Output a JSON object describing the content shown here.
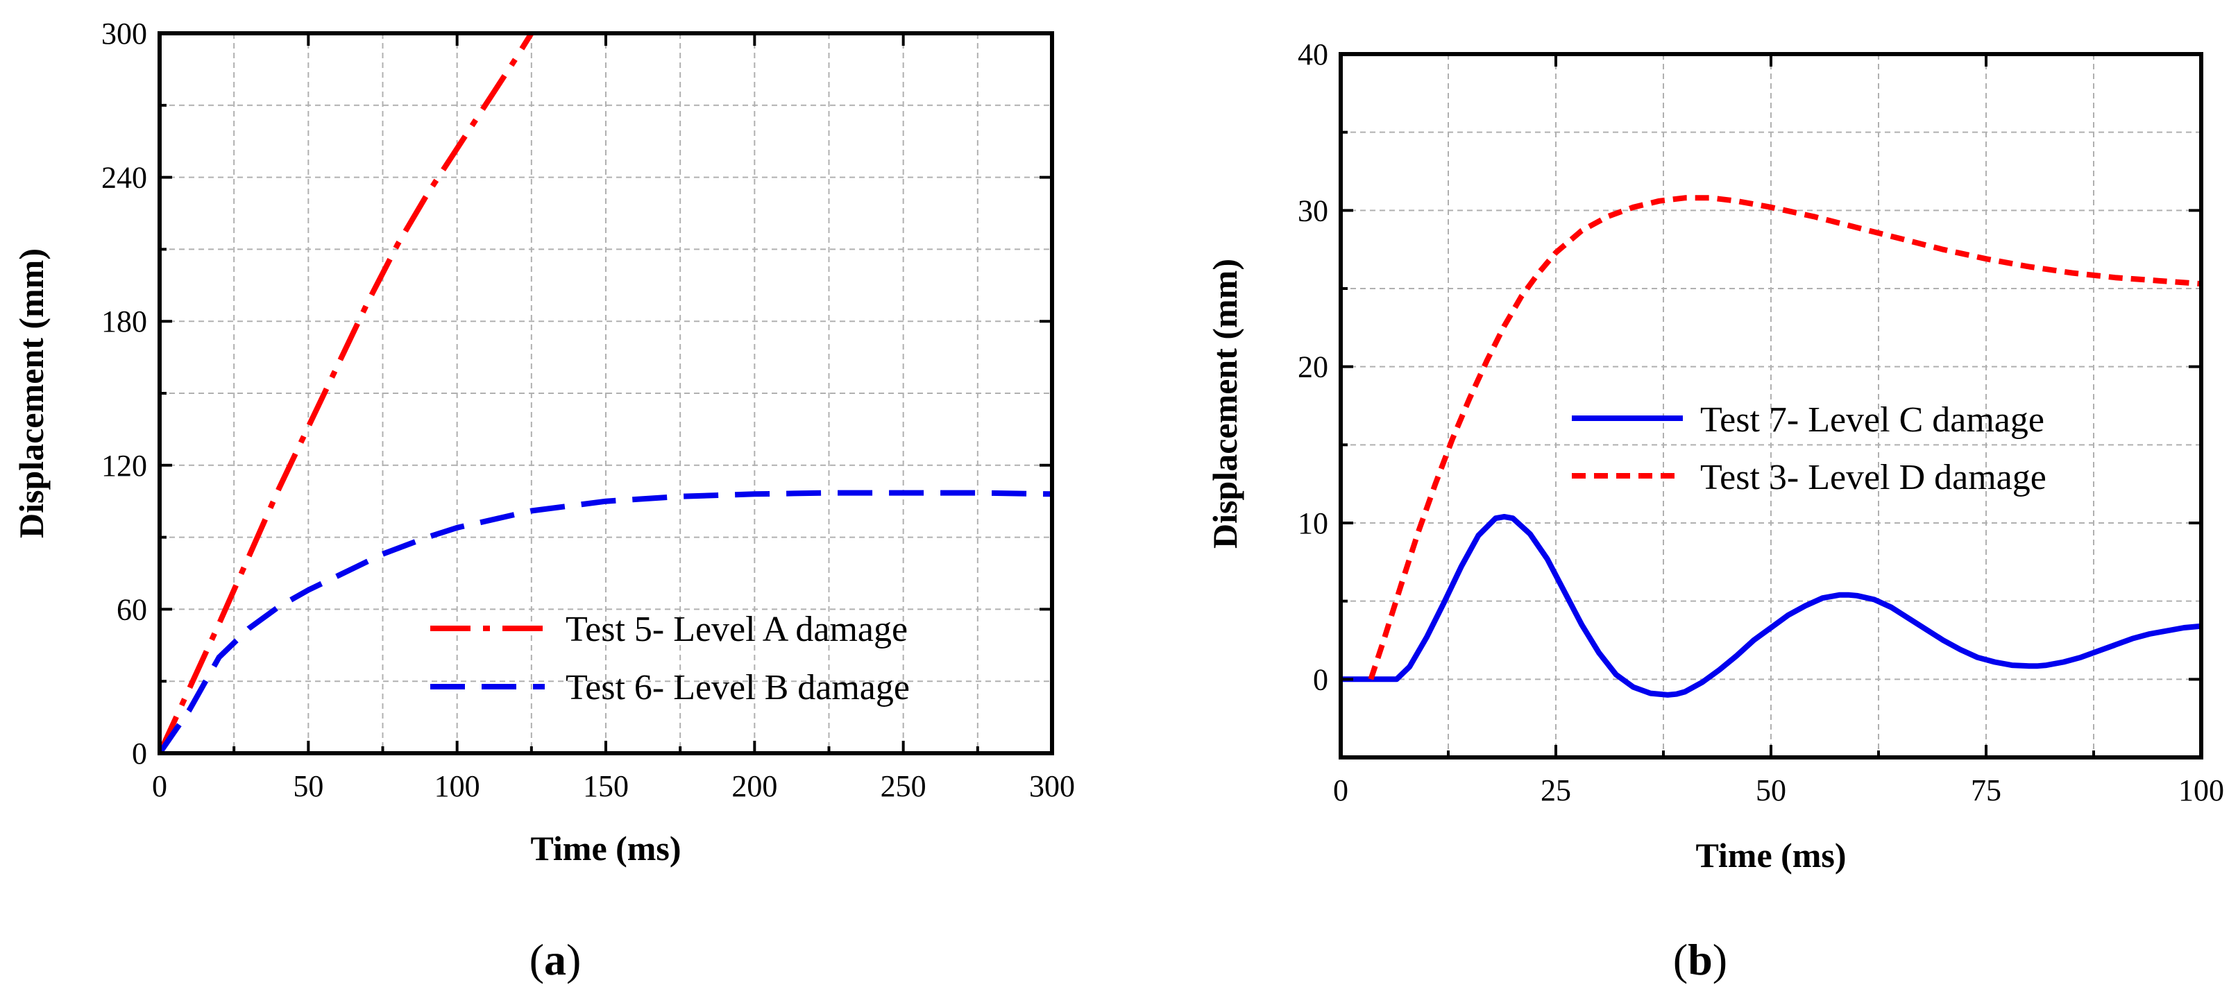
{
  "colors": {
    "red": "#ff0000",
    "blue": "#0000ee",
    "grid": "#b0b0b0",
    "axis": "#000000"
  },
  "chart_data": [
    {
      "type": "line",
      "panel_label": "a",
      "title": "",
      "xlabel": "Time (ms)",
      "ylabel": "Displacement (mm)",
      "xlim": [
        0,
        300
      ],
      "ylim": [
        0,
        300
      ],
      "xticks": [
        0,
        50,
        100,
        150,
        200,
        250,
        300
      ],
      "yticks": [
        0,
        60,
        120,
        180,
        240,
        300
      ],
      "grid": true,
      "legend_position": "lower-right",
      "series": [
        {
          "name": "Test 5- Level A damage",
          "color": "#ff0000",
          "style": "dash-dot",
          "x": [
            0,
            10,
            20,
            30,
            40,
            50,
            60,
            70,
            80,
            90,
            100,
            110,
            120,
            125
          ],
          "y": [
            0,
            27,
            54,
            82,
            110,
            136,
            162,
            188,
            212,
            233,
            252,
            271,
            290,
            300
          ]
        },
        {
          "name": "Test 6- Level B damage",
          "color": "#0000ee",
          "style": "dashed",
          "x": [
            0,
            10,
            20,
            30,
            40,
            50,
            60,
            75,
            90,
            100,
            125,
            150,
            175,
            200,
            225,
            250,
            275,
            300
          ],
          "y": [
            0,
            18,
            40,
            52,
            61,
            68,
            74,
            83,
            90,
            94,
            101,
            105,
            107,
            108,
            108.5,
            108.5,
            108.5,
            108
          ]
        }
      ]
    },
    {
      "type": "line",
      "panel_label": "b",
      "title": "",
      "xlabel": "Time (ms)",
      "ylabel": "Displacement (mm)",
      "xlim": [
        0,
        100
      ],
      "ylim": [
        -5,
        40
      ],
      "xticks": [
        0,
        25,
        50,
        75,
        100
      ],
      "yticks": [
        0,
        10,
        20,
        30,
        40
      ],
      "grid": true,
      "legend_position": "center-right",
      "series": [
        {
          "name": "Test 7- Level C damage",
          "color": "#0000ee",
          "style": "solid",
          "x": [
            0,
            6.5,
            8,
            10,
            12,
            14,
            16,
            18,
            19,
            20,
            22,
            24,
            26,
            28,
            30,
            32,
            34,
            36,
            38,
            39,
            40,
            42,
            44,
            46,
            48,
            50,
            52,
            54,
            56,
            58,
            59,
            60,
            62,
            64,
            66,
            68,
            70,
            72,
            74,
            76,
            78,
            80,
            81,
            82,
            84,
            86,
            88,
            90,
            92,
            94,
            96,
            98,
            100
          ],
          "y": [
            0,
            0,
            0.8,
            2.7,
            4.9,
            7.2,
            9.2,
            10.3,
            10.4,
            10.3,
            9.3,
            7.7,
            5.6,
            3.5,
            1.7,
            0.3,
            -0.5,
            -0.9,
            -1.0,
            -0.95,
            -0.8,
            -0.2,
            0.6,
            1.5,
            2.5,
            3.3,
            4.1,
            4.7,
            5.2,
            5.4,
            5.4,
            5.35,
            5.1,
            4.6,
            3.9,
            3.2,
            2.5,
            1.9,
            1.4,
            1.1,
            0.9,
            0.85,
            0.85,
            0.9,
            1.1,
            1.4,
            1.8,
            2.2,
            2.6,
            2.9,
            3.1,
            3.3,
            3.4
          ]
        },
        {
          "name": "Test 3- Level D damage",
          "color": "#ff0000",
          "style": "dotted",
          "x": [
            3.5,
            5,
            7,
            9,
            11,
            13,
            15,
            17,
            19,
            21,
            23,
            25,
            28,
            31,
            34,
            37,
            40,
            43,
            46,
            50,
            55,
            60,
            65,
            70,
            75,
            80,
            85,
            90,
            95,
            100
          ],
          "y": [
            0,
            2.5,
            6,
            9.4,
            12.5,
            15.4,
            18,
            20.4,
            22.6,
            24.5,
            26,
            27.3,
            28.7,
            29.6,
            30.2,
            30.6,
            30.8,
            30.8,
            30.6,
            30.2,
            29.6,
            28.9,
            28.2,
            27.5,
            26.9,
            26.4,
            26.0,
            25.7,
            25.5,
            25.3
          ]
        }
      ]
    }
  ]
}
